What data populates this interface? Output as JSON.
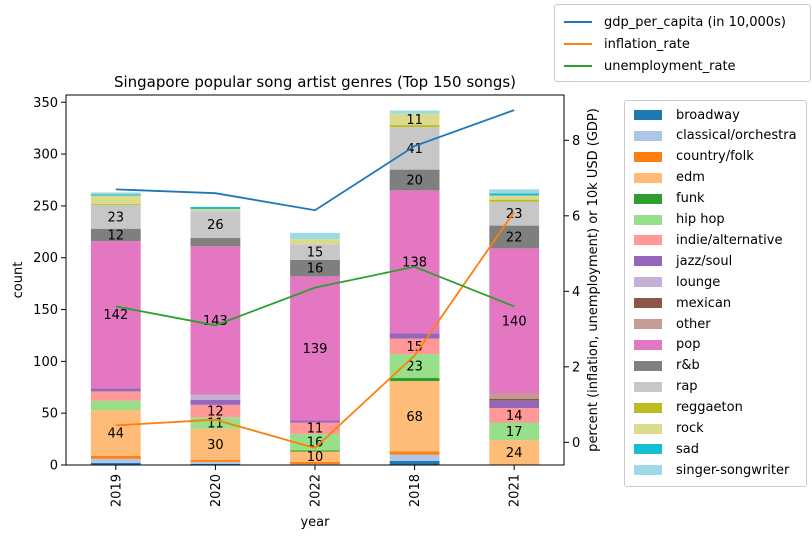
{
  "chart_data": {
    "type": "bar",
    "stacked": true,
    "title": "Singapore popular song artist genres (Top 150 songs)",
    "xlabel": "year",
    "ylabel": "count",
    "y2label": "percent (inflation, unemployment) or 10k USD (GDP)",
    "categories": [
      "2019",
      "2020",
      "2022",
      "2018",
      "2021"
    ],
    "ylim": [
      0,
      357
    ],
    "yticks": [
      0,
      50,
      100,
      150,
      200,
      250,
      300,
      350
    ],
    "y2lim": [
      -0.6,
      9.2
    ],
    "y2ticks": [
      0,
      2,
      4,
      6,
      8
    ],
    "series": [
      {
        "name": "broadway",
        "color": "#1f77b4",
        "values": [
          2,
          1,
          0,
          4,
          0
        ]
      },
      {
        "name": "classical/orchestra",
        "color": "#aec7e8",
        "values": [
          4,
          2,
          1,
          6,
          0
        ]
      },
      {
        "name": "country/folk",
        "color": "#ff7f0e",
        "values": [
          3,
          2,
          2,
          3,
          0
        ]
      },
      {
        "name": "edm",
        "color": "#ffbb78",
        "values": [
          44,
          30,
          10,
          68,
          24
        ]
      },
      {
        "name": "funk",
        "color": "#2ca02c",
        "values": [
          0,
          0,
          1,
          3,
          0
        ]
      },
      {
        "name": "hip hop",
        "color": "#98df8a",
        "values": [
          9,
          11,
          16,
          23,
          17
        ]
      },
      {
        "name": "indie/alternative",
        "color": "#ff9896",
        "values": [
          9,
          12,
          11,
          15,
          14
        ]
      },
      {
        "name": "jazz/soul",
        "color": "#9467bd",
        "values": [
          3,
          5,
          2,
          5,
          7
        ]
      },
      {
        "name": "lounge",
        "color": "#c5b0d5",
        "values": [
          0,
          5,
          0,
          0,
          0
        ]
      },
      {
        "name": "mexican",
        "color": "#8c564b",
        "values": [
          0,
          0,
          0,
          0,
          2
        ]
      },
      {
        "name": "other",
        "color": "#c49c94",
        "values": [
          0,
          0,
          0,
          0,
          5
        ]
      },
      {
        "name": "pop",
        "color": "#e377c2",
        "values": [
          142,
          143,
          139,
          138,
          140
        ]
      },
      {
        "name": "r&b",
        "color": "#7f7f7f",
        "values": [
          12,
          8,
          16,
          20,
          22
        ]
      },
      {
        "name": "rap",
        "color": "#c7c7c7",
        "values": [
          23,
          26,
          15,
          41,
          23
        ]
      },
      {
        "name": "reggaeton",
        "color": "#bcbd22",
        "values": [
          1,
          0,
          0,
          2,
          2
        ]
      },
      {
        "name": "rock",
        "color": "#dbdb8d",
        "values": [
          8,
          2,
          5,
          11,
          4
        ]
      },
      {
        "name": "sad",
        "color": "#17becf",
        "values": [
          1,
          2,
          0,
          0,
          2
        ]
      },
      {
        "name": "singer-songwriter",
        "color": "#9edae5",
        "values": [
          2,
          0,
          6,
          3,
          4
        ]
      }
    ],
    "label_threshold": 10,
    "lines": [
      {
        "name": "gdp_per_capita (in 10,000s)",
        "color": "#1f77b4",
        "values": [
          6.7,
          6.6,
          6.15,
          7.85,
          8.8
        ]
      },
      {
        "name": "inflation_rate",
        "color": "#ff7f0e",
        "values": [
          0.45,
          0.6,
          -0.15,
          2.3,
          6.1
        ]
      },
      {
        "name": "unemployment_rate",
        "color": "#2ca02c",
        "values": [
          3.6,
          3.1,
          4.1,
          4.65,
          3.6
        ]
      }
    ],
    "grid": false,
    "legend_position": "right"
  }
}
